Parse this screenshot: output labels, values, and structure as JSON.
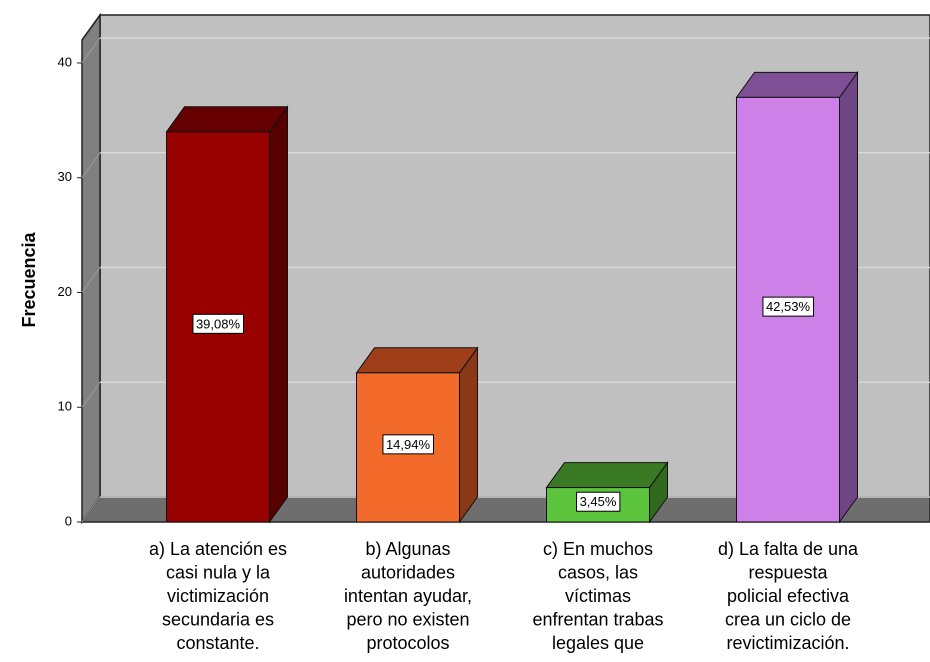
{
  "chart_data": {
    "type": "bar3d",
    "y_label": "Frecuencia",
    "categories": [
      [
        "a) La atención es",
        "casi nula y la",
        "victimización",
        "secundaria es",
        "constante."
      ],
      [
        "b) Algunas",
        "autoridades",
        "intentan ayudar,",
        "pero no existen",
        "protocolos"
      ],
      [
        "c) En muchos",
        "casos, las",
        "víctimas",
        "enfrentan trabas",
        "legales que"
      ],
      [
        "d) La falta de una",
        "respuesta",
        "policial efectiva",
        "crea un ciclo de",
        "revictimización."
      ]
    ],
    "values": [
      34,
      13,
      3,
      37
    ],
    "value_labels": [
      "39,08%",
      "14,94%",
      "3,45%",
      "42,53%"
    ],
    "colors": [
      "#990000",
      "#f26b2a",
      "#5cc43c",
      "#cc80e8"
    ],
    "top_colors": [
      "#660000",
      "#9e3f1a",
      "#3a7a24",
      "#7f4f96"
    ],
    "side_colors": [
      "#560000",
      "#8a3818",
      "#316a1e",
      "#6e4585"
    ],
    "ylim": [
      0,
      42
    ],
    "yticks": [
      0,
      10,
      20,
      30,
      40
    ],
    "grid": true
  }
}
